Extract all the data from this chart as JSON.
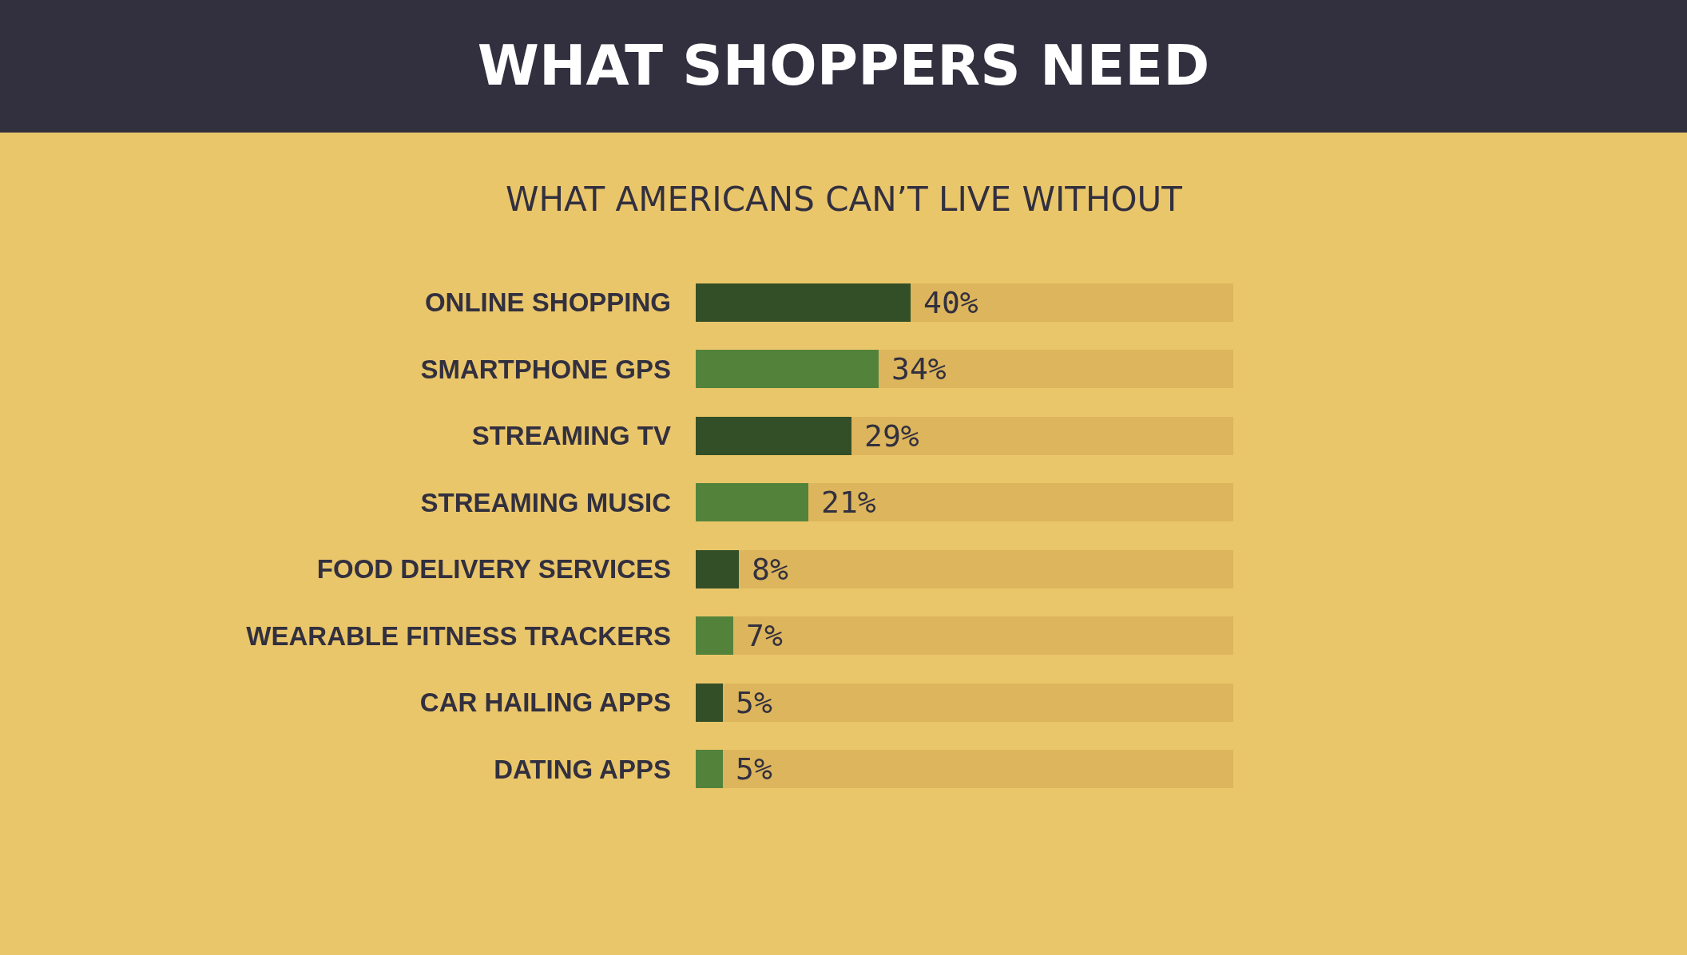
{
  "chart_data": {
    "type": "bar",
    "orientation": "horizontal",
    "stacked": true,
    "title": "WHAT SHOPPERS NEED",
    "subtitle": "WHAT AMERICANS CAN’T LIVE WITHOUT",
    "categories": [
      "ONLINE SHOPPING",
      "SMARTPHONE GPS",
      "STREAMING TV",
      "STREAMING MUSIC",
      "FOOD DELIVERY SERVICES",
      "WEARABLE FITNESS TRACKERS",
      "CAR HAILING APPS",
      "DATING APPS"
    ],
    "series": [
      {
        "values": [
          40,
          34,
          29,
          21,
          8,
          7,
          5,
          5
        ],
        "colors": [
          "#334f27",
          "#53833b",
          "#334f27",
          "#53833b",
          "#334f27",
          "#53833b",
          "#334f27",
          "#53833b"
        ],
        "value_labels": [
          "40%",
          "34%",
          "29%",
          "21%",
          "8%",
          "7%",
          "5%",
          "5%"
        ]
      },
      {
        "values": [
          60,
          66,
          71,
          79,
          92,
          93,
          95,
          95
        ],
        "color": "#dcb55c"
      }
    ],
    "xlim": [
      0,
      100
    ],
    "tick_labels": "y",
    "grid": false
  }
}
